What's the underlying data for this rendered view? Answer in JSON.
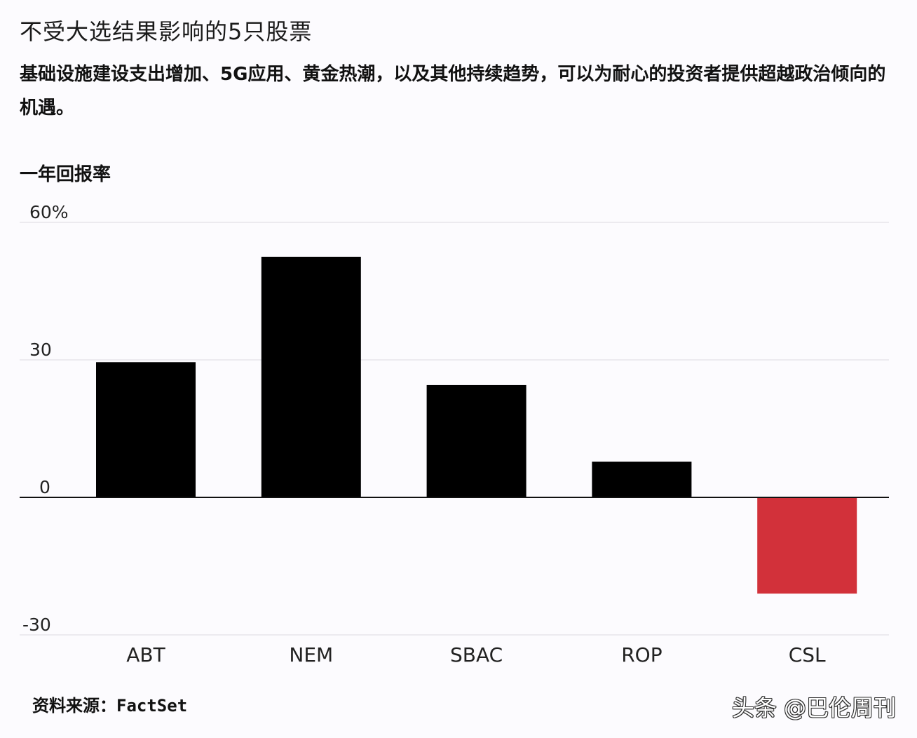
{
  "title": "不受大选结果影响的5只股票",
  "subtitle": "基础设施建设支出增加、5G应用、黄金热潮，以及其他持续趋势，可以为耐心的投资者提供超越政治倾向的机遇。",
  "source": {
    "label": "资料来源：",
    "value": "FactSet"
  },
  "watermark": "头条 @巴伦周刊",
  "colors": {
    "positive_bar": "#000000",
    "negative_bar": "#d2313a",
    "gridline": "#e6e4ea",
    "zero_line": "#111111",
    "background": "#fcfbfe"
  },
  "chart_data": {
    "type": "bar",
    "title": "不受大选结果影响的5只股票",
    "ylabel": "一年回报率",
    "xlabel": "",
    "categories": [
      "ABT",
      "NEM",
      "SBAC",
      "ROP",
      "CSL"
    ],
    "values": [
      29.5,
      52.5,
      24.5,
      7.8,
      -21
    ],
    "ylim": [
      -30,
      60
    ],
    "yticks": [
      60,
      30,
      0,
      -30
    ],
    "ytick_labels": [
      "60%",
      "30",
      "0",
      "-30"
    ],
    "grid": true,
    "legend": "none"
  }
}
